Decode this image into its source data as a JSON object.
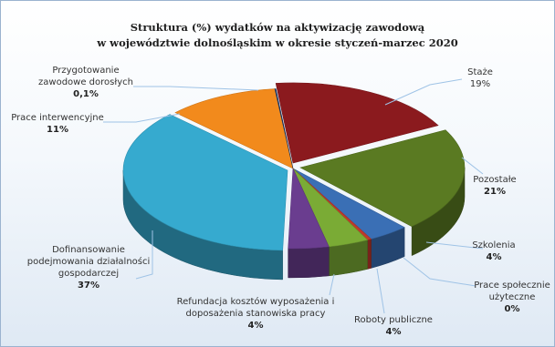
{
  "chart_data": {
    "type": "pie",
    "style": "3d-exploded",
    "title": "Struktura (%) wydatków na aktywizację zawodową",
    "subtitle": "w województwie dolnośląskim w okresie styczeń-marzec 2020",
    "slices": [
      {
        "name": "Staże",
        "name_lines": [
          "Staże"
        ],
        "value": 19,
        "value_label": "19%",
        "color": "#8b1a1e",
        "label_bold": false
      },
      {
        "name": "Pozostałe",
        "name_lines": [
          "Pozostałe"
        ],
        "value": 21,
        "value_label": "21%",
        "color": "#5a7a22",
        "label_bold": true
      },
      {
        "name": "Szkolenia",
        "name_lines": [
          "Szkolenia"
        ],
        "value": 4,
        "value_label": "4%",
        "color": "#3a6fb5",
        "label_bold": true
      },
      {
        "name": "Prace społecznie użyteczne",
        "name_lines": [
          "Prace społecznie",
          "użyteczne"
        ],
        "value": 0.4,
        "value_label": "0%",
        "color": "#c0392b",
        "label_bold": true
      },
      {
        "name": "Roboty publiczne",
        "name_lines": [
          "Roboty publiczne"
        ],
        "value": 4,
        "value_label": "4%",
        "color": "#7aab35",
        "label_bold": true
      },
      {
        "name": "Refundacja kosztów wyposażenia i doposażenia stanowiska pracy",
        "name_lines": [
          "Refundacja kosztów wyposażenia i",
          "doposażenia stanowiska pracy"
        ],
        "value": 4,
        "value_label": "4%",
        "color": "#6a3d8f",
        "label_bold": true
      },
      {
        "name": "Dofinansowanie podejmowania działalności gospodarczej",
        "name_lines": [
          "Dofinansowanie",
          "podejmowania działalności",
          "gospodarczej"
        ],
        "value": 37,
        "value_label": "37%",
        "color": "#36aacf",
        "label_bold": true
      },
      {
        "name": "Prace interwencyjne",
        "name_lines": [
          "Prace interwencyjne"
        ],
        "value": 11,
        "value_label": "11%",
        "color": "#f28a1c",
        "label_bold": true
      },
      {
        "name": "Przygotowanie zawodowe dorosłych",
        "name_lines": [
          "Przygotowanie",
          "zawodowe dorosłych"
        ],
        "value": 0.1,
        "value_label": "0,1%",
        "color": "#1f3b6e",
        "label_bold": true
      }
    ]
  }
}
